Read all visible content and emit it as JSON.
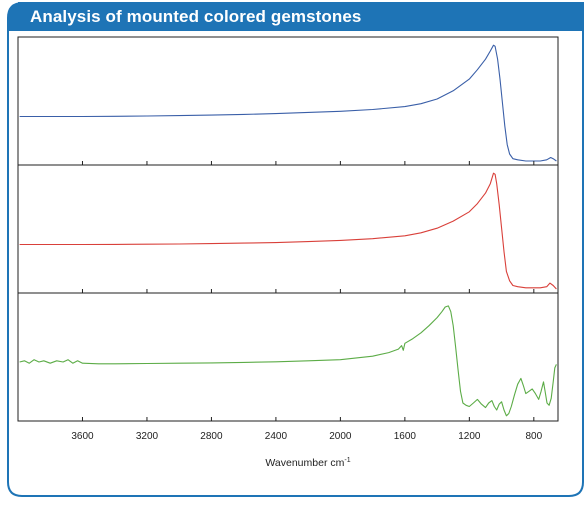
{
  "header": {
    "title": "Analysis of mounted colored gemstones"
  },
  "colors": {
    "frame": "#1e74b6",
    "header_bg": "#1e74b6",
    "series": [
      "#3a5fa8",
      "#d9403a",
      "#5cac47"
    ]
  },
  "chart_data": {
    "type": "line",
    "xlabel": "Wavenumber cm⁻¹",
    "x_unit_base": "Wavenumber cm",
    "x_unit_exponent": "-1",
    "xlim": [
      4000,
      650
    ],
    "x_reversed": true,
    "xticks": [
      3600,
      3200,
      2800,
      2400,
      2000,
      1600,
      1200,
      800
    ],
    "stacked_panels": 3,
    "y_axis_labels": false,
    "series": [
      {
        "points": [
          [
            3990,
            0.38
          ],
          [
            3800,
            0.38
          ],
          [
            3600,
            0.38
          ],
          [
            3400,
            0.382
          ],
          [
            3200,
            0.385
          ],
          [
            3000,
            0.388
          ],
          [
            2800,
            0.392
          ],
          [
            2600,
            0.398
          ],
          [
            2400,
            0.405
          ],
          [
            2200,
            0.415
          ],
          [
            2000,
            0.425
          ],
          [
            1800,
            0.44
          ],
          [
            1600,
            0.465
          ],
          [
            1500,
            0.49
          ],
          [
            1400,
            0.53
          ],
          [
            1300,
            0.6
          ],
          [
            1200,
            0.7
          ],
          [
            1150,
            0.78
          ],
          [
            1100,
            0.87
          ],
          [
            1070,
            0.94
          ],
          [
            1050,
            0.99
          ],
          [
            1040,
            0.98
          ],
          [
            1025,
            0.87
          ],
          [
            1010,
            0.7
          ],
          [
            995,
            0.5
          ],
          [
            980,
            0.3
          ],
          [
            965,
            0.14
          ],
          [
            950,
            0.06
          ],
          [
            930,
            0.02
          ],
          [
            900,
            0.01
          ],
          [
            850,
            0.0
          ],
          [
            800,
            0.0
          ],
          [
            760,
            0.0
          ],
          [
            720,
            0.01
          ],
          [
            695,
            0.03
          ],
          [
            680,
            0.02
          ],
          [
            660,
            0.0
          ]
        ]
      },
      {
        "points": [
          [
            3990,
            0.38
          ],
          [
            3800,
            0.38
          ],
          [
            3600,
            0.38
          ],
          [
            3400,
            0.381
          ],
          [
            3200,
            0.383
          ],
          [
            3000,
            0.385
          ],
          [
            2800,
            0.388
          ],
          [
            2600,
            0.392
          ],
          [
            2400,
            0.397
          ],
          [
            2200,
            0.405
          ],
          [
            2000,
            0.415
          ],
          [
            1800,
            0.43
          ],
          [
            1600,
            0.455
          ],
          [
            1500,
            0.48
          ],
          [
            1400,
            0.52
          ],
          [
            1300,
            0.58
          ],
          [
            1200,
            0.66
          ],
          [
            1150,
            0.73
          ],
          [
            1100,
            0.82
          ],
          [
            1070,
            0.9
          ],
          [
            1050,
            0.99
          ],
          [
            1040,
            0.98
          ],
          [
            1030,
            0.9
          ],
          [
            1015,
            0.72
          ],
          [
            1000,
            0.52
          ],
          [
            985,
            0.32
          ],
          [
            970,
            0.15
          ],
          [
            950,
            0.07
          ],
          [
            930,
            0.03
          ],
          [
            900,
            0.02
          ],
          [
            850,
            0.01
          ],
          [
            800,
            0.01
          ],
          [
            760,
            0.01
          ],
          [
            720,
            0.02
          ],
          [
            700,
            0.05
          ],
          [
            680,
            0.03
          ],
          [
            660,
            0.0
          ]
        ]
      },
      {
        "points": [
          [
            3990,
            0.47
          ],
          [
            3960,
            0.48
          ],
          [
            3930,
            0.46
          ],
          [
            3900,
            0.49
          ],
          [
            3870,
            0.47
          ],
          [
            3840,
            0.48
          ],
          [
            3800,
            0.46
          ],
          [
            3760,
            0.48
          ],
          [
            3720,
            0.47
          ],
          [
            3690,
            0.49
          ],
          [
            3660,
            0.46
          ],
          [
            3630,
            0.48
          ],
          [
            3600,
            0.46
          ],
          [
            3500,
            0.455
          ],
          [
            3400,
            0.455
          ],
          [
            3200,
            0.457
          ],
          [
            3000,
            0.46
          ],
          [
            2800,
            0.462
          ],
          [
            2600,
            0.467
          ],
          [
            2400,
            0.472
          ],
          [
            2200,
            0.48
          ],
          [
            2000,
            0.49
          ],
          [
            1800,
            0.52
          ],
          [
            1700,
            0.55
          ],
          [
            1640,
            0.58
          ],
          [
            1620,
            0.61
          ],
          [
            1610,
            0.57
          ],
          [
            1600,
            0.63
          ],
          [
            1550,
            0.67
          ],
          [
            1500,
            0.72
          ],
          [
            1450,
            0.78
          ],
          [
            1400,
            0.85
          ],
          [
            1370,
            0.9
          ],
          [
            1350,
            0.94
          ],
          [
            1330,
            0.95
          ],
          [
            1315,
            0.9
          ],
          [
            1300,
            0.78
          ],
          [
            1285,
            0.6
          ],
          [
            1270,
            0.4
          ],
          [
            1255,
            0.22
          ],
          [
            1240,
            0.12
          ],
          [
            1220,
            0.1
          ],
          [
            1200,
            0.09
          ],
          [
            1175,
            0.12
          ],
          [
            1150,
            0.15
          ],
          [
            1125,
            0.11
          ],
          [
            1100,
            0.08
          ],
          [
            1080,
            0.12
          ],
          [
            1060,
            0.14
          ],
          [
            1045,
            0.09
          ],
          [
            1030,
            0.06
          ],
          [
            1015,
            0.11
          ],
          [
            1000,
            0.13
          ],
          [
            985,
            0.06
          ],
          [
            970,
            0.01
          ],
          [
            955,
            0.03
          ],
          [
            940,
            0.09
          ],
          [
            920,
            0.19
          ],
          [
            900,
            0.28
          ],
          [
            880,
            0.33
          ],
          [
            865,
            0.27
          ],
          [
            850,
            0.2
          ],
          [
            830,
            0.22
          ],
          [
            810,
            0.24
          ],
          [
            790,
            0.2
          ],
          [
            770,
            0.15
          ],
          [
            755,
            0.22
          ],
          [
            740,
            0.3
          ],
          [
            730,
            0.22
          ],
          [
            718,
            0.12
          ],
          [
            705,
            0.1
          ],
          [
            692,
            0.16
          ],
          [
            680,
            0.3
          ],
          [
            670,
            0.42
          ],
          [
            660,
            0.45
          ]
        ]
      }
    ]
  }
}
